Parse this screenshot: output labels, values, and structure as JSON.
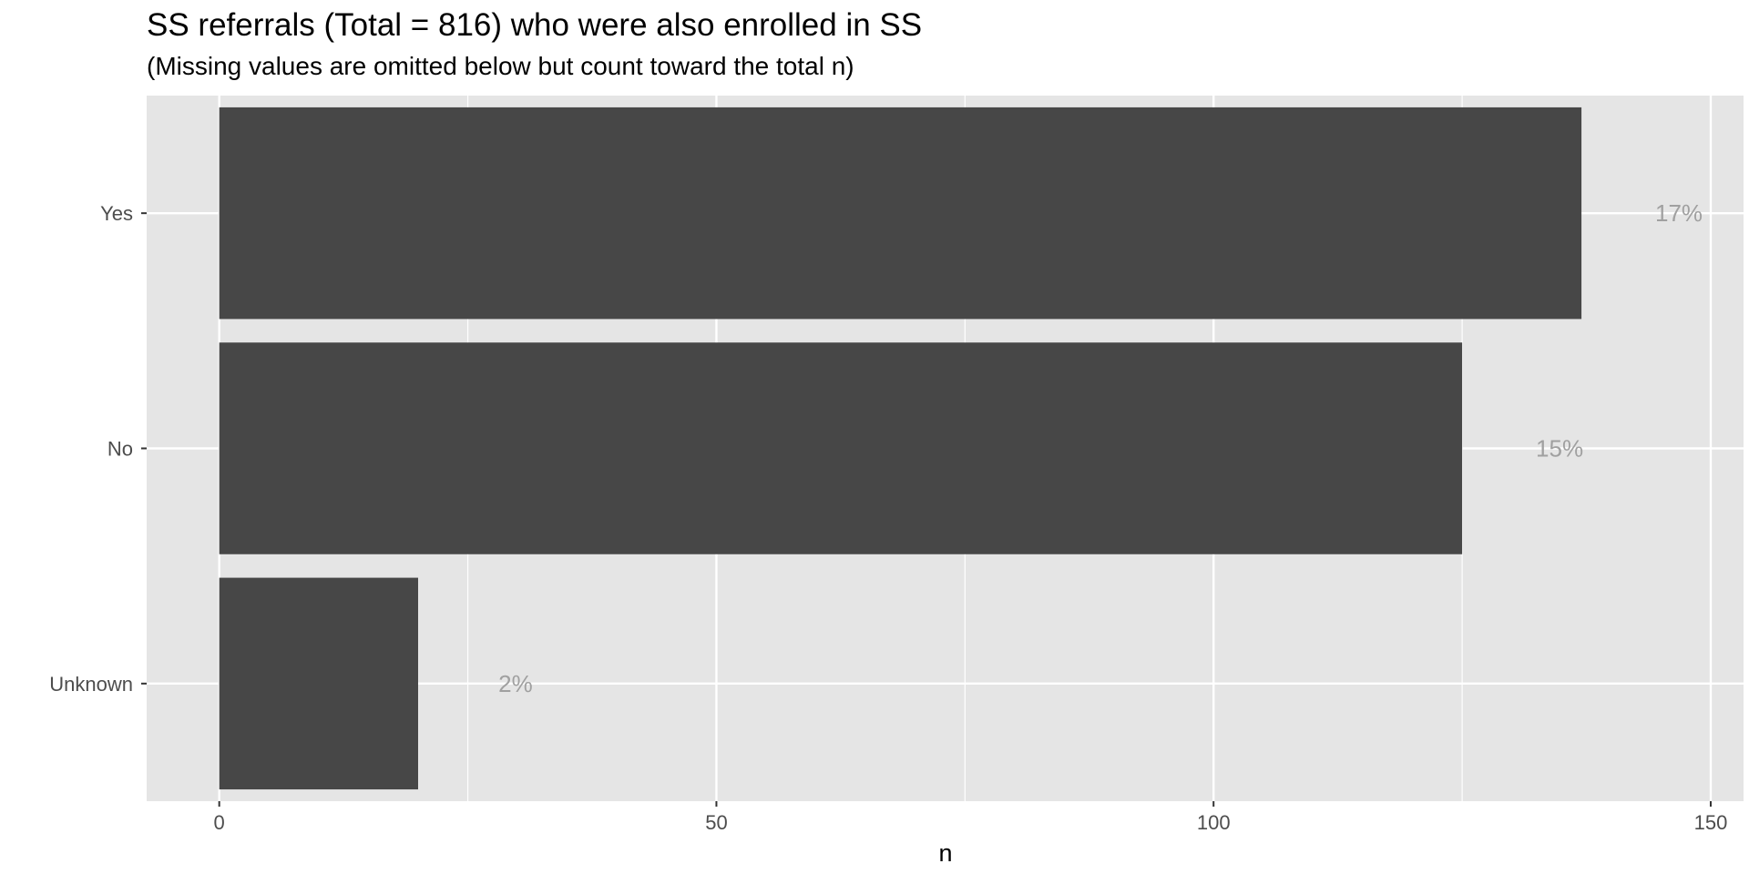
{
  "chart_data": {
    "type": "bar",
    "orientation": "horizontal",
    "title": "SS referrals (Total = 816) who were also enrolled in SS",
    "subtitle": "(Missing values are omitted below but count toward the total n)",
    "xlabel": "n",
    "ylabel": "",
    "categories": [
      "Yes",
      "No",
      "Unknown"
    ],
    "values": [
      137,
      125,
      20
    ],
    "data_labels": [
      "17%",
      "15%",
      "2%"
    ],
    "xlim": [
      -7.3,
      153.3
    ],
    "x_ticks": [
      0,
      50,
      100,
      150
    ],
    "grid": true,
    "legend": "none",
    "colors": {
      "bar": "#474747",
      "panel": "#e5e5e5",
      "grid": "#ffffff",
      "data_label": "#a0a0a0"
    }
  }
}
